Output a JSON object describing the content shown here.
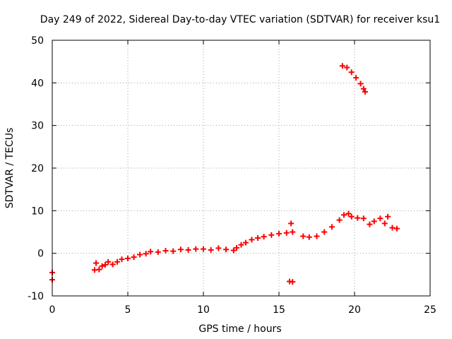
{
  "chart_data": {
    "type": "scatter",
    "title": "Day 249 of 2022, Sidereal Day-to-day VTEC variation (SDTVAR) for receiver ksu1",
    "xlabel": "GPS time / hours",
    "ylabel": "SDTVAR / TECUs",
    "xlim": [
      0,
      25
    ],
    "ylim": [
      -10,
      50
    ],
    "xticks": [
      0,
      5,
      10,
      15,
      20,
      25
    ],
    "yticks": [
      -10,
      0,
      10,
      20,
      30,
      40,
      50
    ],
    "grid": true,
    "series": [
      {
        "name": "SDTVAR",
        "color": "#ff0000",
        "marker": "plus",
        "points": [
          [
            0.0,
            -4.5
          ],
          [
            0.0,
            -6.2
          ],
          [
            2.8,
            -3.9
          ],
          [
            2.9,
            -2.3
          ],
          [
            3.1,
            -3.8
          ],
          [
            3.3,
            -3.0
          ],
          [
            3.5,
            -2.7
          ],
          [
            3.7,
            -2.0
          ],
          [
            4.0,
            -2.6
          ],
          [
            4.3,
            -2.0
          ],
          [
            4.6,
            -1.4
          ],
          [
            5.0,
            -1.2
          ],
          [
            5.4,
            -0.9
          ],
          [
            5.8,
            -0.3
          ],
          [
            6.2,
            -0.1
          ],
          [
            6.5,
            0.4
          ],
          [
            7.0,
            0.3
          ],
          [
            7.5,
            0.6
          ],
          [
            8.0,
            0.5
          ],
          [
            8.5,
            0.9
          ],
          [
            9.0,
            0.8
          ],
          [
            9.5,
            1.0
          ],
          [
            10.0,
            1.0
          ],
          [
            10.5,
            0.8
          ],
          [
            11.0,
            1.2
          ],
          [
            11.5,
            0.9
          ],
          [
            12.0,
            0.7
          ],
          [
            12.2,
            1.3
          ],
          [
            12.5,
            2.0
          ],
          [
            12.8,
            2.5
          ],
          [
            13.2,
            3.2
          ],
          [
            13.6,
            3.6
          ],
          [
            14.0,
            3.9
          ],
          [
            14.5,
            4.3
          ],
          [
            15.0,
            4.6
          ],
          [
            15.5,
            4.8
          ],
          [
            15.9,
            5.0
          ],
          [
            15.8,
            7.0
          ],
          [
            15.7,
            -6.6
          ],
          [
            15.9,
            -6.7
          ],
          [
            16.6,
            4.0
          ],
          [
            17.0,
            3.8
          ],
          [
            17.5,
            4.0
          ],
          [
            18.0,
            5.0
          ],
          [
            18.5,
            6.2
          ],
          [
            19.0,
            7.8
          ],
          [
            19.3,
            9.0
          ],
          [
            19.6,
            9.3
          ],
          [
            19.8,
            8.6
          ],
          [
            20.2,
            8.3
          ],
          [
            20.6,
            8.2
          ],
          [
            21.0,
            6.8
          ],
          [
            21.3,
            7.5
          ],
          [
            21.7,
            8.2
          ],
          [
            22.0,
            7.0
          ],
          [
            22.2,
            8.6
          ],
          [
            22.5,
            6.0
          ],
          [
            22.8,
            5.8
          ],
          [
            19.2,
            44.0
          ],
          [
            19.5,
            43.6
          ],
          [
            19.8,
            42.5
          ],
          [
            20.1,
            41.2
          ],
          [
            20.4,
            39.8
          ],
          [
            20.6,
            38.6
          ],
          [
            20.7,
            37.9
          ]
        ]
      }
    ]
  }
}
